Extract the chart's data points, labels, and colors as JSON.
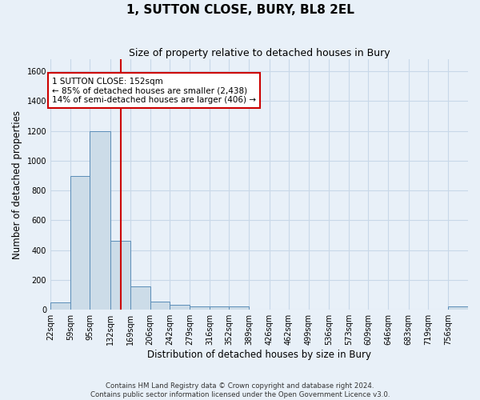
{
  "title": "1, SUTTON CLOSE, BURY, BL8 2EL",
  "subtitle": "Size of property relative to detached houses in Bury",
  "xlabel": "Distribution of detached houses by size in Bury",
  "ylabel": "Number of detached properties",
  "bin_labels": [
    "22sqm",
    "59sqm",
    "95sqm",
    "132sqm",
    "169sqm",
    "206sqm",
    "242sqm",
    "279sqm",
    "316sqm",
    "352sqm",
    "389sqm",
    "426sqm",
    "462sqm",
    "499sqm",
    "536sqm",
    "573sqm",
    "609sqm",
    "646sqm",
    "683sqm",
    "719sqm",
    "756sqm"
  ],
  "bar_values": [
    50,
    900,
    1200,
    465,
    155,
    55,
    35,
    25,
    20,
    20,
    0,
    0,
    0,
    0,
    0,
    0,
    0,
    0,
    0,
    0,
    20
  ],
  "bar_color": "#ccdce8",
  "bar_edge_color": "#5b8db8",
  "background_color": "#e8f0f8",
  "grid_color": "#c8d8e8",
  "vline_color": "#cc0000",
  "annotation_text": "1 SUTTON CLOSE: 152sqm\n← 85% of detached houses are smaller (2,438)\n14% of semi-detached houses are larger (406) →",
  "annotation_box_color": "#ffffff",
  "annotation_box_edge_color": "#cc0000",
  "footer_text": "Contains HM Land Registry data © Crown copyright and database right 2024.\nContains public sector information licensed under the Open Government Licence v3.0.",
  "ylim": [
    0,
    1680
  ],
  "yticks": [
    0,
    200,
    400,
    600,
    800,
    1000,
    1200,
    1400,
    1600
  ],
  "bin_edges": [
    22,
    59,
    95,
    132,
    169,
    206,
    242,
    279,
    316,
    352,
    389,
    426,
    462,
    499,
    536,
    573,
    609,
    646,
    683,
    719,
    756,
    793
  ]
}
